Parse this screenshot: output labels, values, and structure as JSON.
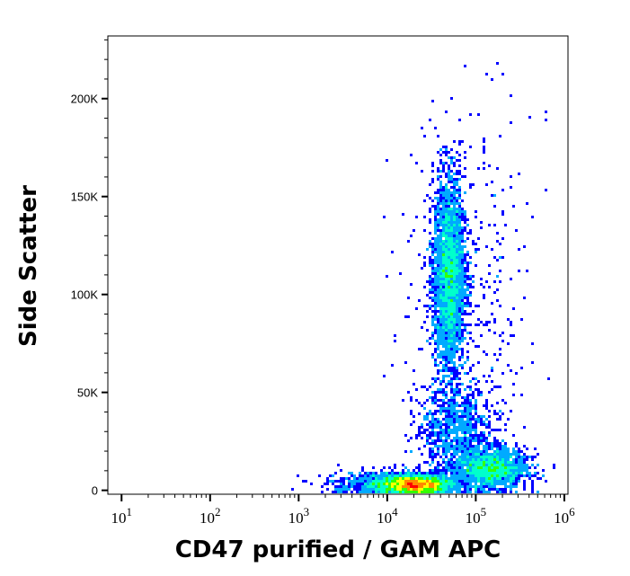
{
  "chart_data": {
    "type": "scatter",
    "subtype": "density-dot-plot",
    "xlabel": "CD47 purified / GAM APC",
    "ylabel": "Side Scatter",
    "x_scale": "log",
    "xlim": [
      7,
      1100000
    ],
    "ylim": [
      -2000,
      232000
    ],
    "x_ticks": [
      {
        "base": "10",
        "exp": "1",
        "value": 10
      },
      {
        "base": "10",
        "exp": "2",
        "value": 100
      },
      {
        "base": "10",
        "exp": "3",
        "value": 1000
      },
      {
        "base": "10",
        "exp": "4",
        "value": 10000
      },
      {
        "base": "10",
        "exp": "5",
        "value": 100000
      },
      {
        "base": "10",
        "exp": "6",
        "value": 1000000
      }
    ],
    "y_ticks": [
      {
        "label": "0",
        "value": 0
      },
      {
        "label": "50K",
        "value": 50000
      },
      {
        "label": "100K",
        "value": 100000
      },
      {
        "label": "150K",
        "value": 150000
      },
      {
        "label": "200K",
        "value": 200000
      }
    ],
    "grid": false,
    "density_colors": [
      "#0000ff",
      "#00aaff",
      "#00ffcc",
      "#33ff00",
      "#ffff00",
      "#ff8800",
      "#ff0000"
    ],
    "populations": [
      {
        "x_center": 20000,
        "x_log_sd": 0.22,
        "y_center": 3000,
        "y_sd": 2500,
        "count": 3200
      },
      {
        "x_center": 150000,
        "x_log_sd": 0.2,
        "y_center": 11000,
        "y_sd": 5000,
        "count": 1800
      },
      {
        "x_center": 50000,
        "x_log_sd": 0.09,
        "y_center": 110000,
        "y_sd": 25000,
        "count": 3200
      },
      {
        "x_center": 60000,
        "x_log_sd": 0.2,
        "y_center": 30000,
        "y_sd": 11000,
        "count": 900
      },
      {
        "x_center": 80000,
        "x_log_sd": 0.35,
        "y_center": 80000,
        "y_sd": 55000,
        "count": 450
      },
      {
        "x_center": 6000,
        "x_log_sd": 0.3,
        "y_center": 4000,
        "y_sd": 3000,
        "count": 300
      }
    ]
  }
}
